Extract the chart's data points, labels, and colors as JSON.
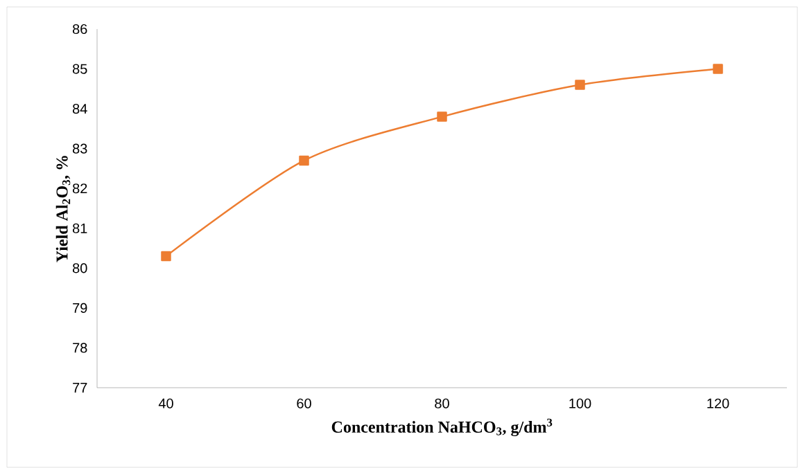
{
  "chart_data": {
    "type": "line",
    "xlabel": "Concentration NaHCO$_{3}$, g/dm$^{3}$",
    "ylabel": "Yield Al$_{2}$O$_{3}$, %",
    "categories": [
      "40",
      "60",
      "80",
      "100",
      "120"
    ],
    "series": [
      {
        "color": "#ed7d31",
        "values": [
          80.3,
          82.7,
          83.8,
          84.6,
          85.0
        ]
      }
    ],
    "ylim": [
      77,
      86
    ],
    "yticks": [
      77,
      78,
      79,
      80,
      81,
      82,
      83,
      84,
      85,
      86
    ],
    "marker": "square",
    "line_style": "solid"
  }
}
